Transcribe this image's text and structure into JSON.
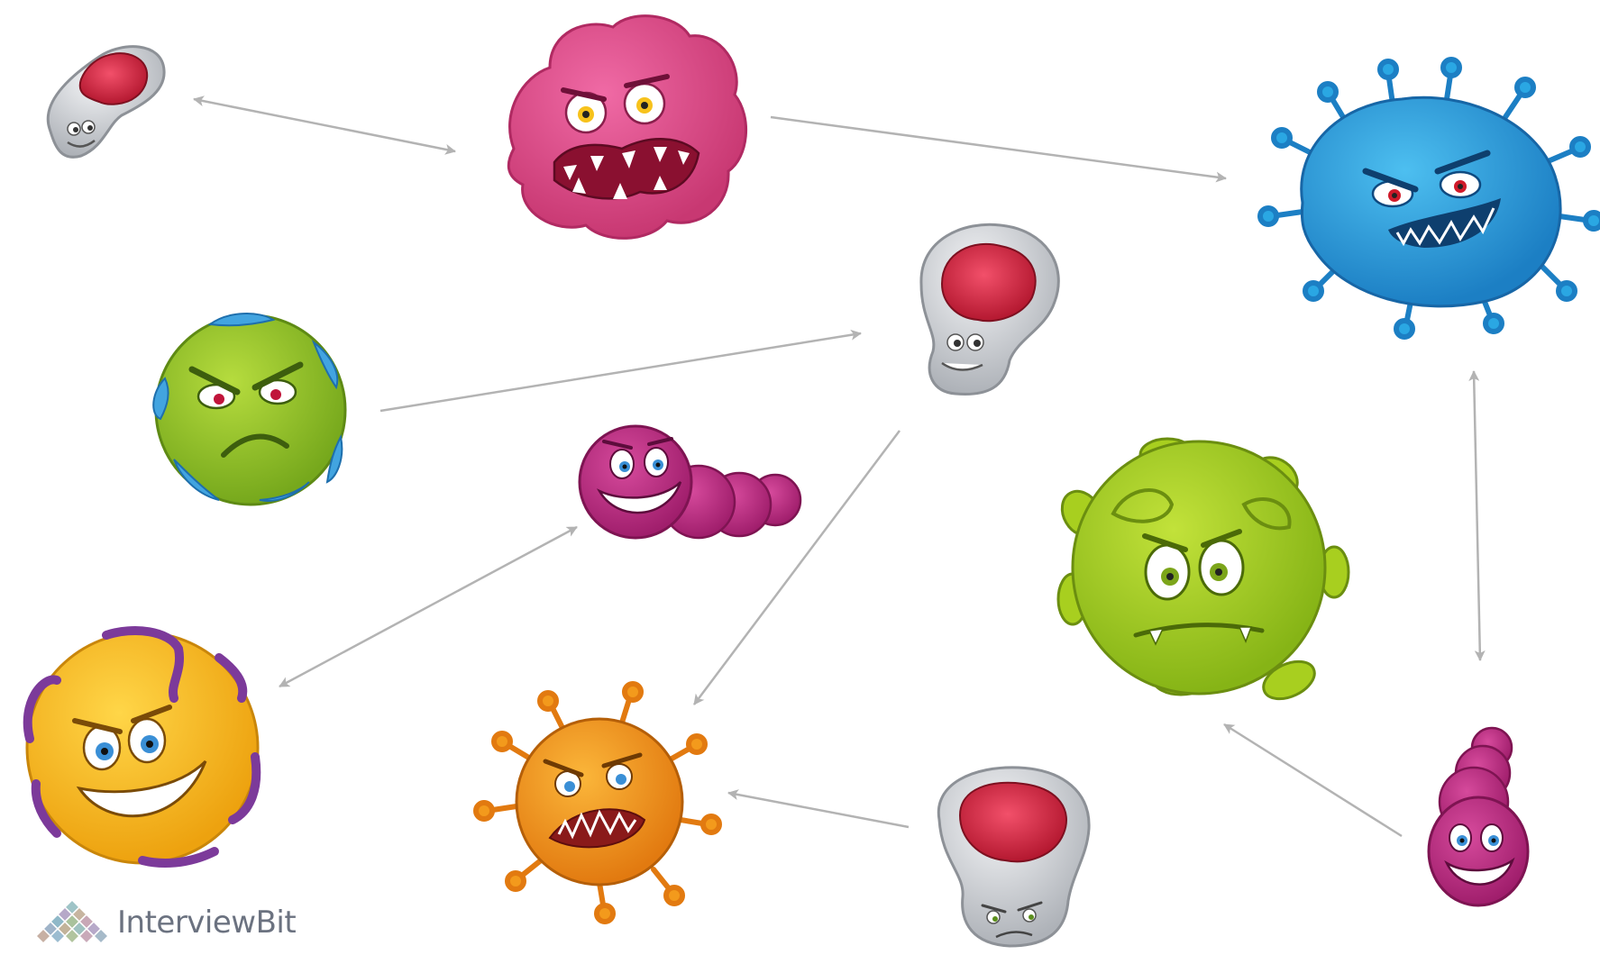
{
  "brand": {
    "name": "InterviewBit",
    "logo_icon": "pyramid-mosaic-icon"
  },
  "colors": {
    "arrow": "#b3b3b3",
    "pink_germ": "#e44f8c",
    "blue_virus": "#2aa7e3",
    "green_germ": "#9ccb2a",
    "lime_virus": "#a8cf1f",
    "yellow_germ": "#f5b71c",
    "orange_virus": "#f39a1c",
    "magenta_worm": "#c02b86",
    "grey_cell": "#c9ccd1",
    "red_nucleus": "#d9283f"
  },
  "nodes": [
    {
      "id": "grey-cell-small",
      "icon": "grey-germ-icon"
    },
    {
      "id": "pink-germ",
      "icon": "pink-blob-germ-icon"
    },
    {
      "id": "blue-virus",
      "icon": "blue-virus-icon"
    },
    {
      "id": "grey-cell-bulb",
      "icon": "grey-bulb-germ-icon"
    },
    {
      "id": "green-germ",
      "icon": "green-germ-icon"
    },
    {
      "id": "magenta-worm",
      "icon": "magenta-worm-icon"
    },
    {
      "id": "lime-virus",
      "icon": "lime-virus-icon"
    },
    {
      "id": "yellow-germ",
      "icon": "yellow-germ-icon"
    },
    {
      "id": "orange-virus",
      "icon": "orange-virus-icon"
    },
    {
      "id": "grey-cell-bottom",
      "icon": "grey-germ-icon"
    },
    {
      "id": "pink-worm",
      "icon": "pink-worm-icon"
    }
  ],
  "edges": [
    {
      "from": "grey-cell-small",
      "to": "pink-germ",
      "bidirectional": true
    },
    {
      "from": "pink-germ",
      "to": "blue-virus",
      "bidirectional": false
    },
    {
      "from": "green-germ",
      "to": "grey-cell-bulb",
      "bidirectional": false
    },
    {
      "from": "magenta-worm",
      "to": "yellow-germ",
      "bidirectional": true
    },
    {
      "from": "grey-cell-bulb",
      "to": "orange-virus",
      "bidirectional": false
    },
    {
      "from": "blue-virus",
      "to": "pink-worm",
      "bidirectional": true
    },
    {
      "from": "pink-worm",
      "to": "lime-virus",
      "bidirectional": false
    },
    {
      "from": "grey-cell-bottom",
      "to": "orange-virus",
      "bidirectional": false
    }
  ]
}
